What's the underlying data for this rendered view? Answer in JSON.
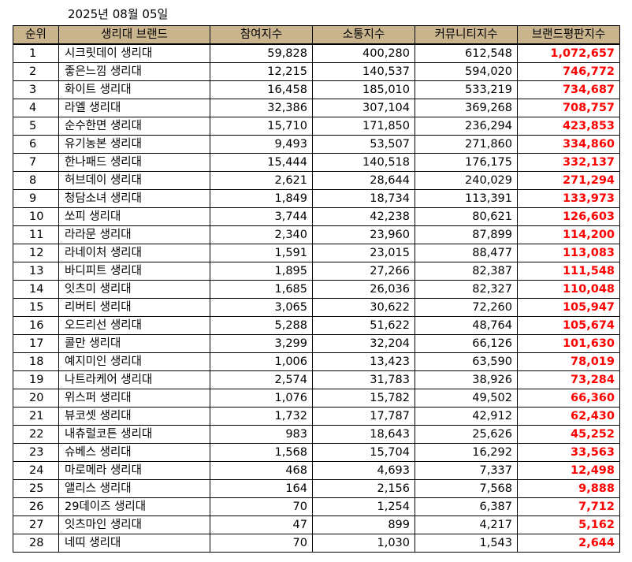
{
  "date": "2025년 08월 05일",
  "headers": {
    "rank": "순위",
    "brand": "생리대 브랜드",
    "participation": "참여지수",
    "communication": "소통지수",
    "community": "커뮤니티지수",
    "reputation": "브랜드평판지수"
  },
  "colors": {
    "header_bg": "#c9b48e",
    "reputation_text": "#ff0000"
  },
  "rows": [
    {
      "rank": "1",
      "brand": "시크릿데이 생리대",
      "participation": "59,828",
      "communication": "400,280",
      "community": "612,548",
      "reputation": "1,072,657"
    },
    {
      "rank": "2",
      "brand": "좋은느낌 생리대",
      "participation": "12,215",
      "communication": "140,537",
      "community": "594,020",
      "reputation": "746,772"
    },
    {
      "rank": "3",
      "brand": "화이트 생리대",
      "participation": "16,458",
      "communication": "185,010",
      "community": "533,219",
      "reputation": "734,687"
    },
    {
      "rank": "4",
      "brand": "라엘 생리대",
      "participation": "32,386",
      "communication": "307,104",
      "community": "369,268",
      "reputation": "708,757"
    },
    {
      "rank": "5",
      "brand": "순수한면 생리대",
      "participation": "15,710",
      "communication": "171,850",
      "community": "236,294",
      "reputation": "423,853"
    },
    {
      "rank": "6",
      "brand": "유기농본 생리대",
      "participation": "9,493",
      "communication": "53,507",
      "community": "271,860",
      "reputation": "334,860"
    },
    {
      "rank": "7",
      "brand": "한나패드 생리대",
      "participation": "15,444",
      "communication": "140,518",
      "community": "176,175",
      "reputation": "332,137"
    },
    {
      "rank": "8",
      "brand": "허브데이 생리대",
      "participation": "2,621",
      "communication": "28,644",
      "community": "240,029",
      "reputation": "271,294"
    },
    {
      "rank": "9",
      "brand": "청담소녀 생리대",
      "participation": "1,849",
      "communication": "18,734",
      "community": "113,391",
      "reputation": "133,973"
    },
    {
      "rank": "10",
      "brand": "쏘피 생리대",
      "participation": "3,744",
      "communication": "42,238",
      "community": "80,621",
      "reputation": "126,603"
    },
    {
      "rank": "11",
      "brand": "라라문 생리대",
      "participation": "2,340",
      "communication": "23,960",
      "community": "87,899",
      "reputation": "114,200"
    },
    {
      "rank": "12",
      "brand": "라네이처 생리대",
      "participation": "1,591",
      "communication": "23,015",
      "community": "88,477",
      "reputation": "113,083"
    },
    {
      "rank": "13",
      "brand": "바디피트 생리대",
      "participation": "1,895",
      "communication": "27,266",
      "community": "82,387",
      "reputation": "111,548"
    },
    {
      "rank": "14",
      "brand": "잇츠미 생리대",
      "participation": "1,685",
      "communication": "26,036",
      "community": "82,327",
      "reputation": "110,048"
    },
    {
      "rank": "15",
      "brand": "리버티 생리대",
      "participation": "3,065",
      "communication": "30,622",
      "community": "72,260",
      "reputation": "105,947"
    },
    {
      "rank": "16",
      "brand": "오드리선 생리대",
      "participation": "5,288",
      "communication": "51,622",
      "community": "48,764",
      "reputation": "105,674"
    },
    {
      "rank": "17",
      "brand": "콜만 생리대",
      "participation": "3,299",
      "communication": "32,204",
      "community": "66,126",
      "reputation": "101,630"
    },
    {
      "rank": "18",
      "brand": "예지미인 생리대",
      "participation": "1,006",
      "communication": "13,423",
      "community": "63,590",
      "reputation": "78,019"
    },
    {
      "rank": "19",
      "brand": "나트라케어 생리대",
      "participation": "2,574",
      "communication": "31,783",
      "community": "38,926",
      "reputation": "73,284"
    },
    {
      "rank": "20",
      "brand": "위스퍼 생리대",
      "participation": "1,076",
      "communication": "15,782",
      "community": "49,502",
      "reputation": "66,360"
    },
    {
      "rank": "21",
      "brand": "뷰코셋 생리대",
      "participation": "1,732",
      "communication": "17,787",
      "community": "42,912",
      "reputation": "62,430"
    },
    {
      "rank": "22",
      "brand": "내츄럴코튼 생리대",
      "participation": "983",
      "communication": "18,643",
      "community": "25,626",
      "reputation": "45,252"
    },
    {
      "rank": "23",
      "brand": "슈베스 생리대",
      "participation": "1,568",
      "communication": "15,704",
      "community": "16,292",
      "reputation": "33,563"
    },
    {
      "rank": "24",
      "brand": "마로메라 생리대",
      "participation": "468",
      "communication": "4,693",
      "community": "7,337",
      "reputation": "12,498"
    },
    {
      "rank": "25",
      "brand": "앨리스 생리대",
      "participation": "164",
      "communication": "2,156",
      "community": "7,568",
      "reputation": "9,888"
    },
    {
      "rank": "26",
      "brand": "29데이즈 생리대",
      "participation": "70",
      "communication": "1,254",
      "community": "6,387",
      "reputation": "7,712"
    },
    {
      "rank": "27",
      "brand": "잇츠마인 생리대",
      "participation": "47",
      "communication": "899",
      "community": "4,217",
      "reputation": "5,162"
    },
    {
      "rank": "28",
      "brand": "네띠 생리대",
      "participation": "70",
      "communication": "1,030",
      "community": "1,543",
      "reputation": "2,644"
    }
  ]
}
